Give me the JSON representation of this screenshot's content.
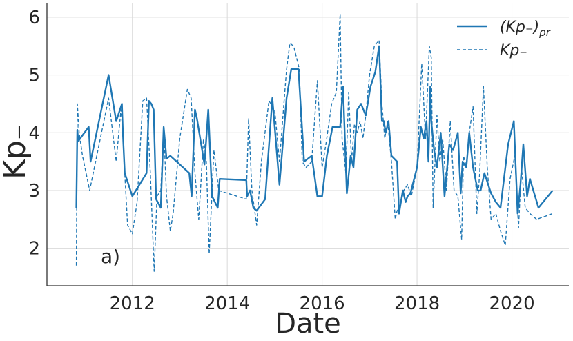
{
  "chart_data": {
    "type": "line",
    "title": "",
    "xlabel": "Date",
    "ylabel": "Kp₋",
    "xlim": [
      2010.2,
      2021.2
    ],
    "ylim": [
      1.35,
      6.25
    ],
    "x_ticks": [
      2012,
      2014,
      2016,
      2018,
      2020
    ],
    "x_tick_labels": [
      "2012",
      "2014",
      "2016",
      "2018",
      "2020"
    ],
    "y_ticks": [
      2,
      3,
      4,
      5,
      6
    ],
    "y_tick_labels": [
      "2",
      "3",
      "4",
      "5",
      "6"
    ],
    "grid": true,
    "legend_position": "top-right",
    "annotation": "a)",
    "color": "#1f77b4",
    "series": [
      {
        "name": "(Kp₋)pr",
        "label_main": "(Kp₋)",
        "label_sub": "pr",
        "style": "solid",
        "x": [
          2010.82,
          2010.84,
          2010.86,
          2010.9,
          2011.08,
          2011.12,
          2011.5,
          2011.66,
          2011.78,
          2011.8,
          2011.84,
          2012.0,
          2012.3,
          2012.35,
          2012.4,
          2012.45,
          2012.5,
          2012.6,
          2012.66,
          2012.72,
          2012.8,
          2013.2,
          2013.25,
          2013.32,
          2013.36,
          2013.52,
          2013.6,
          2013.68,
          2013.8,
          2013.84,
          2014.4,
          2014.42,
          2014.48,
          2014.55,
          2014.62,
          2014.8,
          2014.95,
          2015.1,
          2015.25,
          2015.35,
          2015.5,
          2015.62,
          2015.78,
          2015.9,
          2016.0,
          2016.1,
          2016.22,
          2016.38,
          2016.44,
          2016.52,
          2016.6,
          2016.66,
          2016.74,
          2016.82,
          2016.92,
          2017.02,
          2017.12,
          2017.2,
          2017.26,
          2017.3,
          2017.34,
          2017.4,
          2017.46,
          2017.58,
          2017.62,
          2017.7,
          2017.76,
          2017.8,
          2017.86,
          2018.0,
          2018.08,
          2018.14,
          2018.2,
          2018.24,
          2018.28,
          2018.3,
          2018.36,
          2018.42,
          2018.5,
          2018.58,
          2018.68,
          2018.76,
          2018.86,
          2018.92,
          2018.96,
          2019.04,
          2019.1,
          2019.18,
          2019.28,
          2019.34,
          2019.42,
          2019.56,
          2019.66,
          2019.76,
          2019.92,
          2020.04,
          2020.12,
          2020.18,
          2020.24,
          2020.32,
          2020.38,
          2020.56,
          2020.86
        ],
        "y": [
          2.7,
          4.05,
          3.85,
          3.9,
          4.1,
          3.5,
          5.0,
          4.2,
          4.5,
          4.0,
          3.3,
          2.9,
          3.3,
          4.55,
          4.5,
          4.4,
          2.85,
          2.7,
          4.1,
          3.55,
          3.6,
          3.3,
          2.9,
          4.4,
          4.25,
          3.45,
          4.4,
          2.9,
          2.7,
          3.2,
          3.18,
          2.9,
          3.0,
          2.7,
          2.65,
          2.85,
          4.6,
          3.1,
          4.6,
          5.1,
          5.1,
          3.5,
          3.6,
          2.9,
          2.9,
          3.6,
          4.1,
          4.1,
          4.8,
          2.95,
          3.6,
          3.4,
          4.4,
          4.5,
          4.3,
          4.8,
          5.05,
          5.5,
          4.2,
          4.2,
          4.0,
          4.2,
          3.6,
          3.5,
          2.6,
          3.0,
          2.8,
          2.9,
          2.95,
          3.4,
          4.1,
          3.9,
          4.2,
          3.5,
          4.8,
          4.2,
          3.7,
          3.4,
          4.0,
          2.9,
          3.8,
          3.7,
          4.0,
          2.95,
          3.5,
          3.4,
          4.0,
          3.4,
          3.0,
          3.0,
          3.3,
          2.95,
          2.8,
          2.7,
          3.8,
          4.2,
          2.6,
          3.1,
          3.8,
          2.9,
          3.2,
          2.7,
          3.0
        ]
      },
      {
        "name": "Kp₋",
        "label_main": "Kp₋",
        "label_sub": "",
        "style": "dashed",
        "x": [
          2010.82,
          2010.84,
          2010.88,
          2010.95,
          2011.1,
          2011.5,
          2011.66,
          2011.76,
          2011.8,
          2011.84,
          2011.9,
          2012.0,
          2012.1,
          2012.22,
          2012.3,
          2012.38,
          2012.46,
          2012.52,
          2012.6,
          2012.66,
          2012.72,
          2012.8,
          2012.86,
          2013.0,
          2013.16,
          2013.24,
          2013.32,
          2013.4,
          2013.5,
          2013.56,
          2013.62,
          2013.72,
          2013.82,
          2014.4,
          2014.45,
          2014.52,
          2014.62,
          2014.72,
          2014.88,
          2015.0,
          2015.1,
          2015.25,
          2015.32,
          2015.4,
          2015.52,
          2015.58,
          2015.66,
          2015.78,
          2015.9,
          2016.0,
          2016.08,
          2016.2,
          2016.3,
          2016.38,
          2016.42,
          2016.5,
          2016.56,
          2016.62,
          2016.68,
          2016.74,
          2016.8,
          2016.86,
          2016.92,
          2017.0,
          2017.1,
          2017.2,
          2017.26,
          2017.32,
          2017.38,
          2017.46,
          2017.54,
          2017.58,
          2017.64,
          2017.72,
          2017.8,
          2017.88,
          2018.0,
          2018.1,
          2018.18,
          2018.26,
          2018.3,
          2018.34,
          2018.42,
          2018.48,
          2018.54,
          2018.62,
          2018.7,
          2018.78,
          2018.86,
          2018.94,
          2018.98,
          2019.04,
          2019.1,
          2019.18,
          2019.26,
          2019.32,
          2019.4,
          2019.48,
          2019.56,
          2019.66,
          2019.76,
          2019.86,
          2019.96,
          2020.06,
          2020.14,
          2020.2,
          2020.28,
          2020.38,
          2020.52,
          2020.86
        ],
        "y": [
          1.7,
          4.5,
          4.0,
          3.6,
          3.0,
          4.6,
          3.5,
          4.4,
          4.0,
          3.3,
          2.4,
          2.25,
          2.8,
          4.55,
          4.6,
          3.3,
          1.6,
          2.9,
          3.0,
          4.1,
          2.9,
          2.3,
          2.6,
          3.9,
          4.75,
          4.6,
          3.3,
          2.5,
          3.9,
          3.5,
          1.9,
          3.7,
          3.0,
          2.85,
          4.25,
          3.0,
          2.4,
          3.5,
          4.55,
          4.4,
          3.5,
          5.1,
          5.55,
          5.5,
          5.1,
          3.5,
          3.4,
          3.5,
          4.9,
          3.4,
          3.8,
          4.5,
          4.7,
          6.05,
          3.9,
          3.3,
          4.7,
          3.5,
          4.15,
          4.0,
          4.2,
          3.9,
          4.3,
          5.0,
          5.5,
          5.6,
          4.5,
          3.9,
          4.2,
          3.5,
          2.5,
          2.65,
          2.7,
          3.0,
          3.1,
          2.9,
          3.4,
          5.2,
          3.9,
          5.5,
          5.3,
          2.7,
          4.3,
          3.5,
          3.9,
          3.0,
          4.2,
          3.0,
          2.9,
          2.15,
          3.6,
          3.4,
          4.0,
          4.45,
          2.6,
          3.3,
          4.8,
          3.4,
          2.5,
          2.6,
          2.3,
          2.05,
          3.2,
          3.6,
          2.35,
          3.4,
          2.7,
          2.6,
          2.5,
          2.6
        ]
      }
    ]
  }
}
